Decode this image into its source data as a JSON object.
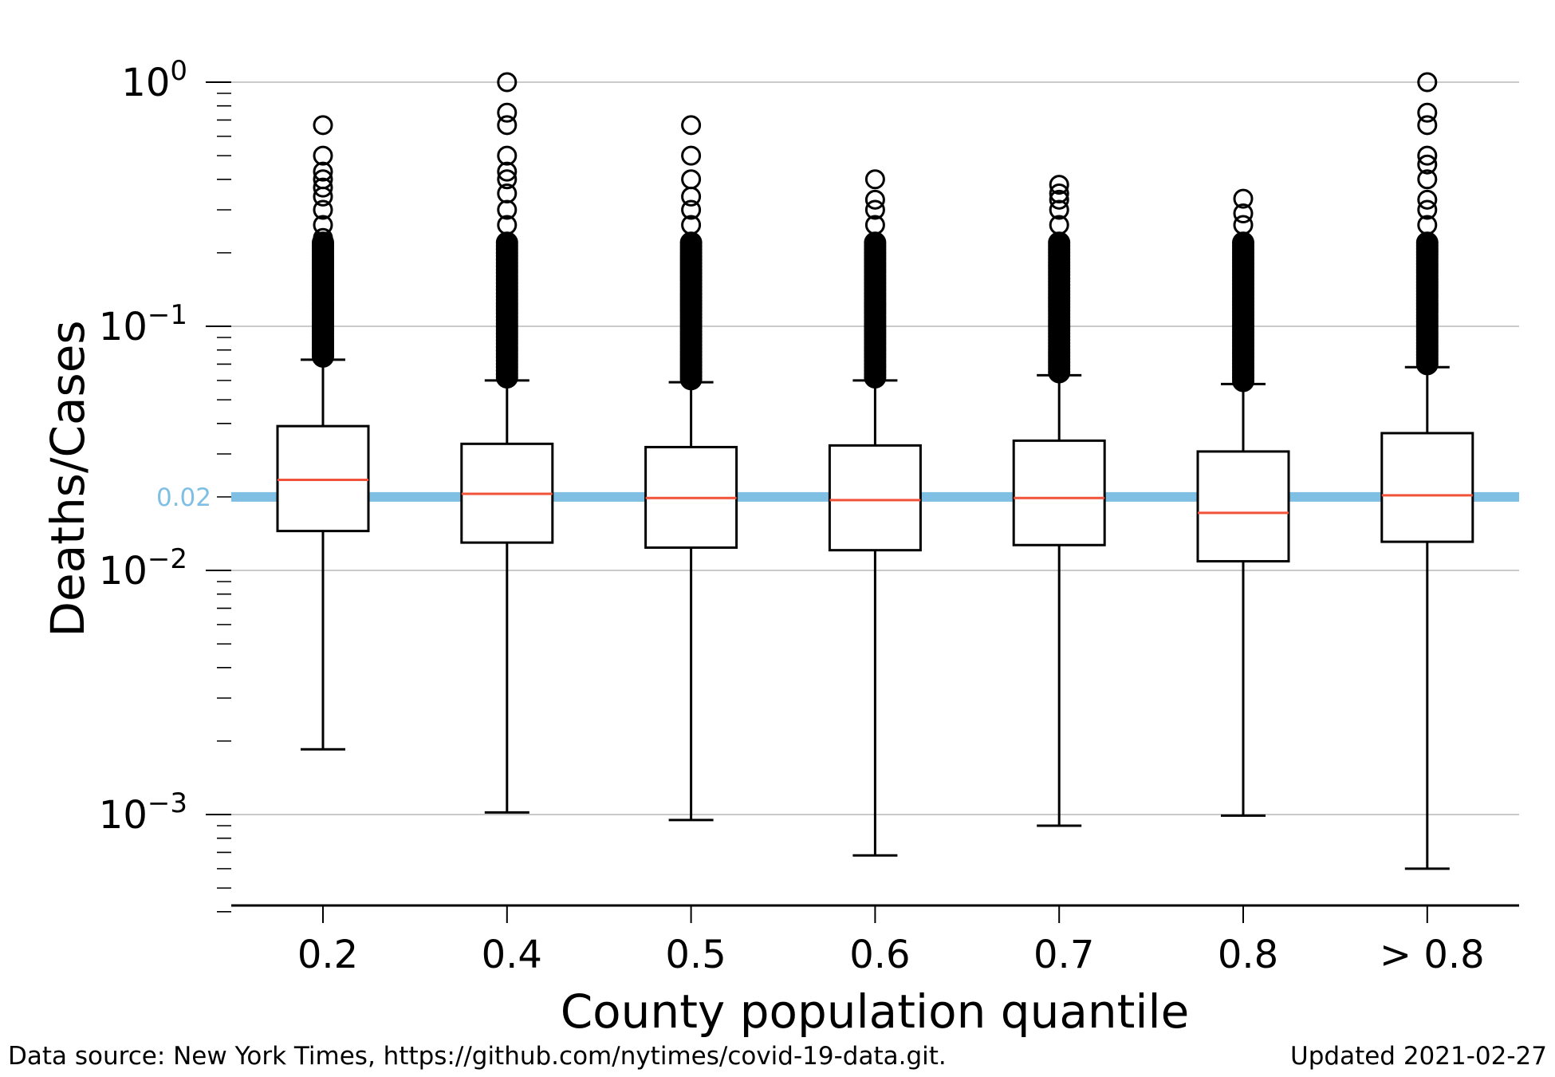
{
  "chart_data": {
    "type": "box",
    "xlabel": "County population quantile",
    "ylabel": "Deaths/Cases",
    "yscale": "log",
    "ylim": [
      0.0004,
      1.0
    ],
    "yticks": [
      {
        "value": 1,
        "base": "10",
        "exp": "0"
      },
      {
        "value": 0.1,
        "base": "10",
        "exp": "−1"
      },
      {
        "value": 0.01,
        "base": "10",
        "exp": "−2"
      },
      {
        "value": 0.001,
        "base": "10",
        "exp": "−3"
      }
    ],
    "grid": "horizontal-major",
    "reference_line": {
      "value": 0.02,
      "label": "0.02",
      "color": "#7fbfe3"
    },
    "median_color": "#f0533a",
    "categories": [
      "0.2",
      "0.4",
      "0.5",
      "0.6",
      "0.7",
      "0.8",
      "> 0.8"
    ],
    "boxes": [
      {
        "whisker_low": 0.00185,
        "q1": 0.0145,
        "median": 0.0235,
        "q3": 0.039,
        "whisker_high": 0.073,
        "outliers": [
          0.075,
          0.08,
          0.085,
          0.09,
          0.1,
          0.11,
          0.12,
          0.13,
          0.15,
          0.17,
          0.2,
          0.23,
          0.26,
          0.3,
          0.34,
          0.37,
          0.4,
          0.43,
          0.5,
          0.667
        ]
      },
      {
        "whisker_low": 0.00102,
        "q1": 0.013,
        "median": 0.0206,
        "q3": 0.033,
        "whisker_high": 0.06,
        "outliers": [
          0.062,
          0.068,
          0.075,
          0.085,
          0.1,
          0.12,
          0.15,
          0.18,
          0.22,
          0.26,
          0.3,
          0.35,
          0.4,
          0.43,
          0.5,
          0.667,
          0.75,
          1.0
        ]
      },
      {
        "whisker_low": 0.00095,
        "q1": 0.0124,
        "median": 0.0198,
        "q3": 0.032,
        "whisker_high": 0.059,
        "outliers": [
          0.061,
          0.067,
          0.075,
          0.085,
          0.1,
          0.12,
          0.15,
          0.18,
          0.22,
          0.26,
          0.3,
          0.34,
          0.4,
          0.5,
          0.667
        ]
      },
      {
        "whisker_low": 0.00068,
        "q1": 0.0121,
        "median": 0.0194,
        "q3": 0.0325,
        "whisker_high": 0.06,
        "outliers": [
          0.062,
          0.068,
          0.075,
          0.085,
          0.1,
          0.12,
          0.15,
          0.18,
          0.22,
          0.26,
          0.3,
          0.33,
          0.4
        ]
      },
      {
        "whisker_low": 0.0009,
        "q1": 0.0127,
        "median": 0.0198,
        "q3": 0.034,
        "whisker_high": 0.063,
        "outliers": [
          0.065,
          0.07,
          0.078,
          0.088,
          0.1,
          0.12,
          0.15,
          0.18,
          0.22,
          0.26,
          0.3,
          0.33,
          0.35,
          0.38
        ]
      },
      {
        "whisker_low": 0.00099,
        "q1": 0.0109,
        "median": 0.0172,
        "q3": 0.0307,
        "whisker_high": 0.058,
        "outliers": [
          0.06,
          0.065,
          0.072,
          0.08,
          0.09,
          0.1,
          0.12,
          0.15,
          0.18,
          0.22,
          0.26,
          0.29,
          0.333
        ]
      },
      {
        "whisker_low": 0.0006,
        "q1": 0.0131,
        "median": 0.0203,
        "q3": 0.0365,
        "whisker_high": 0.068,
        "outliers": [
          0.07,
          0.075,
          0.085,
          0.1,
          0.12,
          0.15,
          0.18,
          0.22,
          0.26,
          0.3,
          0.33,
          0.4,
          0.46,
          0.5,
          0.667,
          0.75,
          1.0
        ]
      }
    ]
  },
  "footer": {
    "source": "Data source: New York Times, https://github.com/nytimes/covid-19-data.git.",
    "updated": "Updated 2021-02-27"
  }
}
